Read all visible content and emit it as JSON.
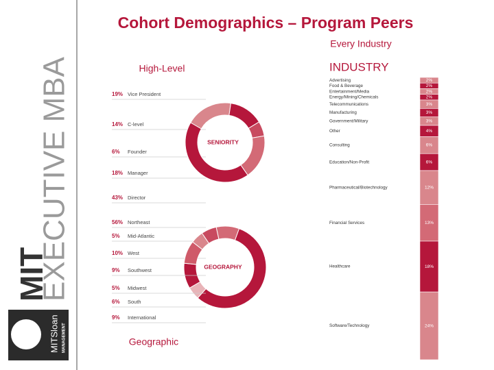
{
  "slide": {
    "title": "Cohort Demographics – Program Peers",
    "industry_caption": "Every Industry",
    "seniority_caption": "High-Level",
    "geography_caption": "Geographic",
    "brand": "MIT",
    "program": "EXECUTIVE MBA",
    "logo_name": "MITSloan",
    "logo_sub": "MANAGEMENT"
  },
  "chart_data": [
    {
      "type": "donut",
      "title": "SENIORITY",
      "categories": [
        "Vice President",
        "C-level",
        "Founder",
        "Manager",
        "Director"
      ],
      "values": [
        19,
        14,
        6,
        18,
        43
      ],
      "value_labels": [
        "19%",
        "14%",
        "6%",
        "18%",
        "43%"
      ],
      "colors": [
        "#d9868c",
        "#b5173b",
        "#c84a5f",
        "#d36a76",
        "#b5173b"
      ]
    },
    {
      "type": "donut",
      "title": "GEOGRAPHY",
      "categories": [
        "Northeast",
        "Mid-Atlantic",
        "West",
        "Southwest",
        "Midwest",
        "South",
        "International"
      ],
      "values": [
        56,
        5,
        10,
        9,
        5,
        6,
        9
      ],
      "value_labels": [
        "56%",
        "5%",
        "10%",
        "9%",
        "5%",
        "6%",
        "9%"
      ],
      "colors": [
        "#b5173b",
        "#e8b4b8",
        "#b5173b",
        "#cf5a69",
        "#d9868c",
        "#c84a5f",
        "#d36a76"
      ]
    },
    {
      "type": "stacked-column",
      "title": "INDUSTRY",
      "categories": [
        "Advertising",
        "Food & Beverage",
        "Entertainment/Media",
        "Energy/Mining/Chemicals",
        "Telecommunications",
        "Manufacturing",
        "Government/Military",
        "Other",
        "Consulting",
        "Education/Non-Profit",
        "Pharmaceutical/Biotechnology",
        "Financial Services",
        "Healthcare",
        "Software/Technology"
      ],
      "values": [
        2,
        2,
        2,
        2,
        3,
        3,
        3,
        4,
        6,
        6,
        12,
        13,
        18,
        24
      ],
      "value_labels": [
        "2%",
        "2%",
        "2%",
        "2%",
        "3%",
        "3%",
        "3%",
        "4%",
        "6%",
        "6%",
        "12%",
        "13%",
        "18%",
        "24%"
      ],
      "colors": [
        "#d9868c",
        "#b5173b",
        "#d9868c",
        "#b5173b",
        "#d9868c",
        "#b5173b",
        "#d9868c",
        "#b5173b",
        "#d9868c",
        "#b5173b",
        "#d9868c",
        "#d36a76",
        "#b5173b",
        "#d9868c"
      ]
    }
  ]
}
